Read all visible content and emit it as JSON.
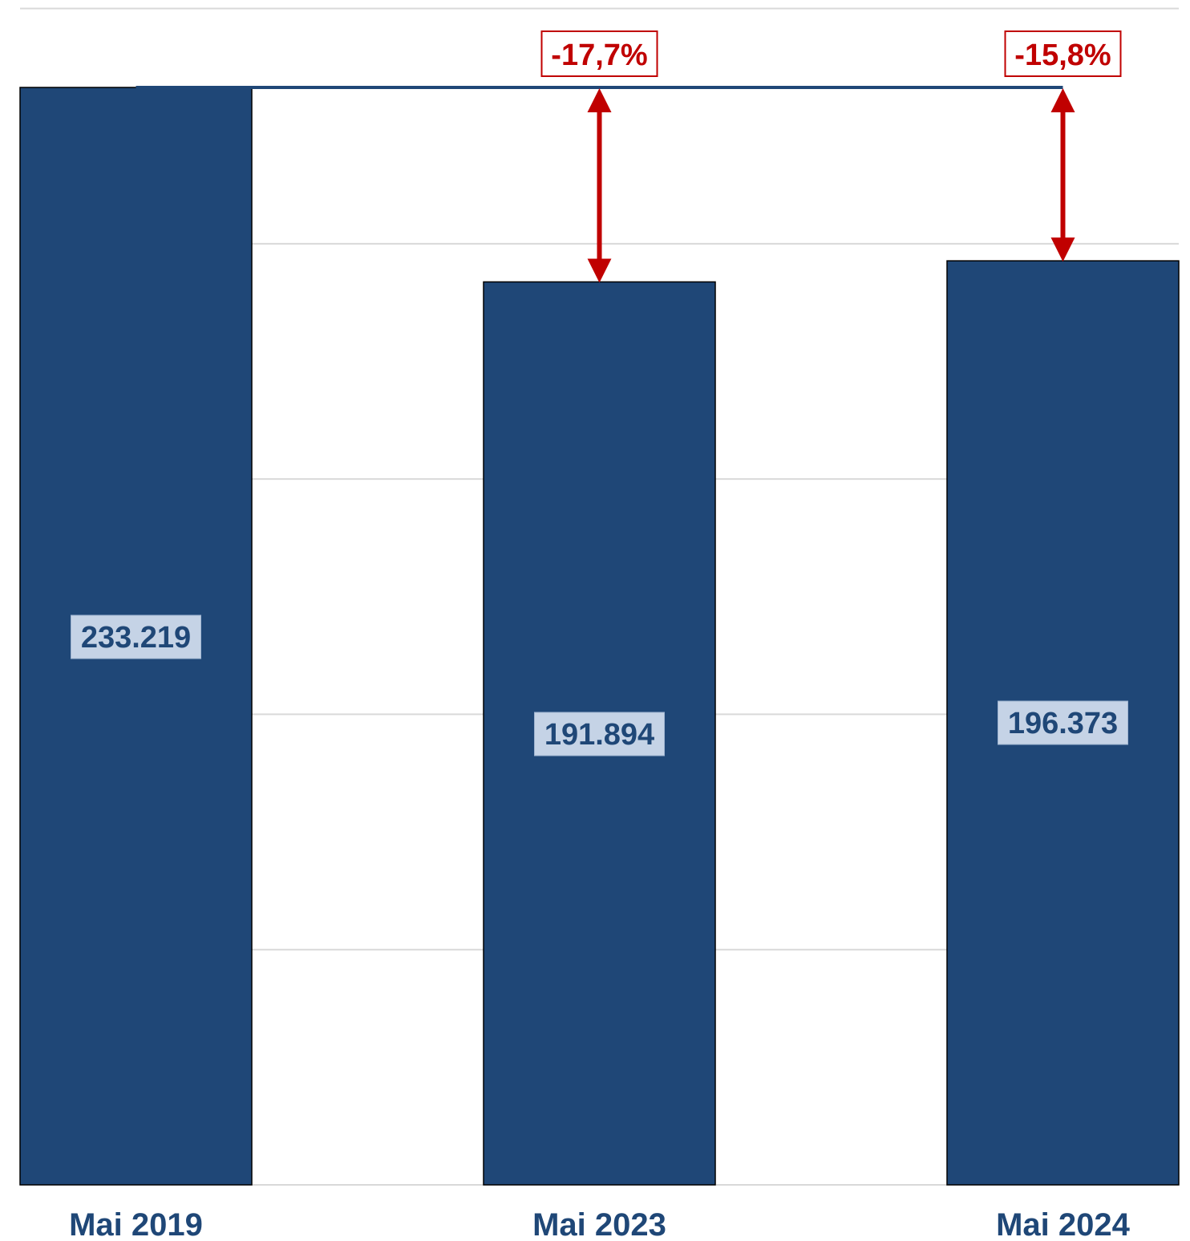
{
  "chart_data": {
    "type": "bar",
    "categories": [
      "Mai 2019",
      "Mai 2023",
      "Mai 2024"
    ],
    "values": [
      233219,
      191894,
      196373
    ],
    "value_labels": [
      "233.219",
      "191.894",
      "196.373"
    ],
    "change_labels": [
      "",
      "-17,7%",
      "-15,8%"
    ],
    "reference_value": 233219,
    "ylim": [
      0,
      250000
    ],
    "gridlines": [
      50000,
      100000,
      150000,
      200000,
      250000
    ],
    "grid": true,
    "legend": "none",
    "title": "",
    "xlabel": "",
    "ylabel": ""
  },
  "colors": {
    "bar": "#1f4777",
    "reference_line": "#1f4777",
    "arrow": "#c00000",
    "grid": "#d9d9d9"
  }
}
